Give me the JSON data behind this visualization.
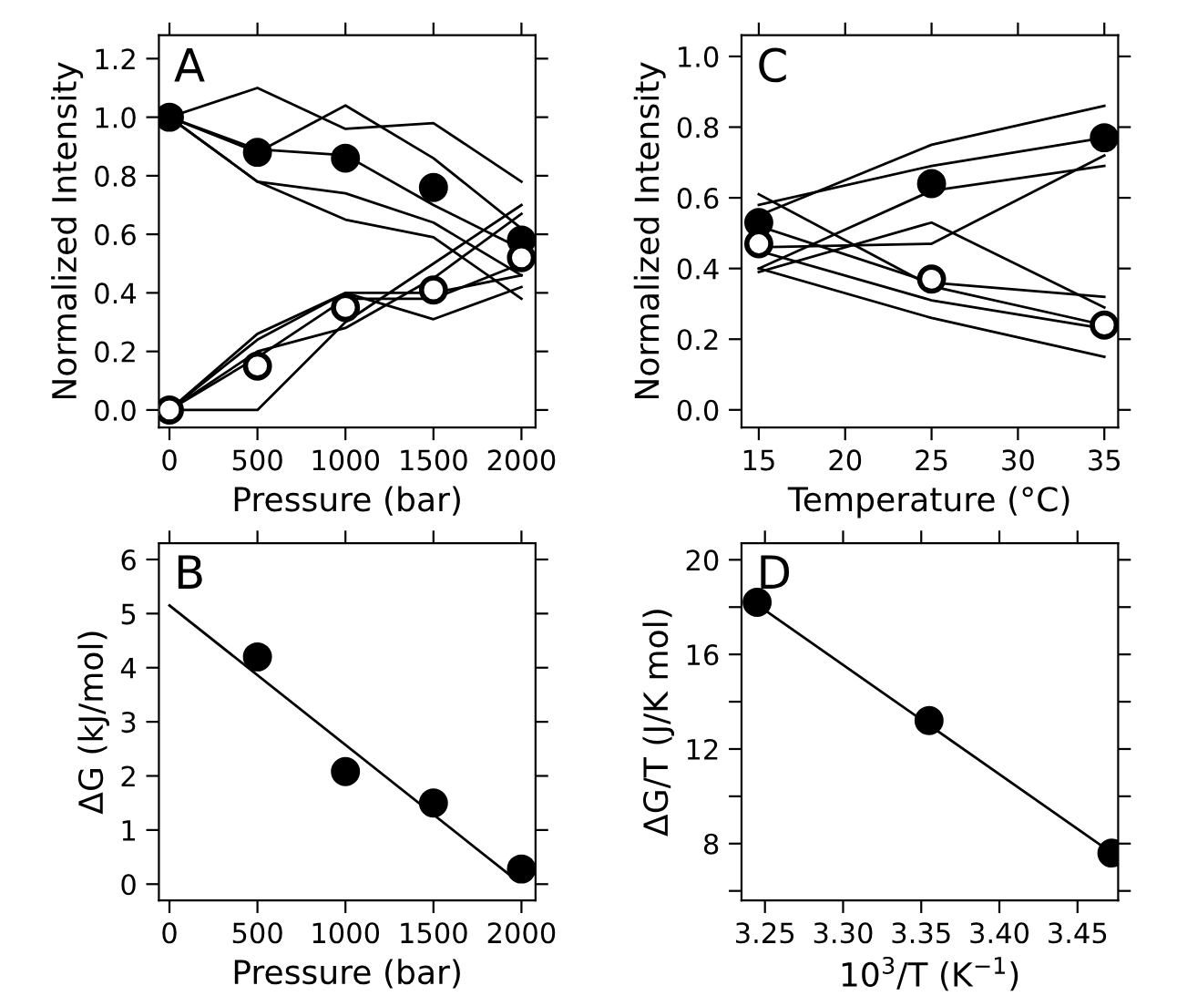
{
  "chart_data": [
    {
      "type": "line",
      "xlabel": "Pressure (bar)",
      "ylabel": "Normalized Intensity",
      "annotations": [
        "A"
      ],
      "x": [
        0,
        500,
        1000,
        1500,
        2000
      ],
      "xlim": [
        -60,
        2080
      ],
      "ylim": [
        -0.06,
        1.28
      ],
      "xticks": [
        0,
        500,
        1000,
        1500,
        2000
      ],
      "yticks": [
        {
          "value": 0,
          "label": "0.0"
        },
        0.2,
        0.4,
        0.6,
        0.8,
        {
          "value": 1,
          "label": "1.0"
        },
        1.2
      ],
      "grid": false,
      "legend": false,
      "line_style": "solid",
      "series": [
        {
          "color": "#000000",
          "marker": "none",
          "values": [
            1.0,
            1.1,
            0.96,
            0.98,
            0.78
          ]
        },
        {
          "color": "#000000",
          "marker": "none",
          "values": [
            1.0,
            0.88,
            1.04,
            0.86,
            0.62
          ]
        },
        {
          "color": "#000000",
          "marker": "none",
          "values": [
            1.0,
            0.78,
            0.74,
            0.64,
            0.46
          ]
        },
        {
          "color": "#000000",
          "marker": "none",
          "values": [
            1.0,
            0.78,
            0.65,
            0.59,
            0.38
          ]
        },
        {
          "color": "#000000",
          "marker": "none",
          "values": [
            1.0,
            0.89,
            0.87,
            0.7,
            0.55
          ]
        },
        {
          "color": "#000000",
          "marker": "none",
          "values": [
            0,
            0,
            0.3,
            0.5,
            0.7
          ]
        },
        {
          "color": "#000000",
          "marker": "none",
          "values": [
            0,
            0.26,
            0.4,
            0.31,
            0.42
          ]
        },
        {
          "color": "#000000",
          "marker": "none",
          "values": [
            0,
            0.24,
            0.4,
            0.4,
            0.46
          ]
        },
        {
          "color": "#000000",
          "marker": "none",
          "values": [
            0,
            0.2,
            0.28,
            0.45,
            0.67
          ]
        },
        {
          "color": "#000000",
          "marker": "none",
          "values": [
            0,
            0.18,
            0.38,
            0.38,
            0.5
          ]
        },
        {
          "type": "scatter",
          "color": "#000000",
          "marker": "circle",
          "values": [
            1.0,
            0.88,
            0.86,
            0.76,
            0.58
          ]
        },
        {
          "type": "scatter",
          "color": "#ffffff",
          "marker": "circle",
          "values": [
            0,
            0.15,
            0.35,
            0.41,
            0.52
          ]
        }
      ]
    },
    {
      "type": "line",
      "xlabel": "Temperature (°C)",
      "ylabel": "Normalized Intensity",
      "annotations": [
        "C"
      ],
      "x": [
        15,
        25,
        35
      ],
      "xlim": [
        14,
        35.8
      ],
      "ylim": [
        -0.05,
        1.06
      ],
      "xticks": [
        15,
        20,
        25,
        30,
        35
      ],
      "yticks": [
        {
          "value": 0,
          "label": "0.0"
        },
        0.2,
        0.4,
        0.6,
        0.8,
        {
          "value": 1,
          "label": "1.0"
        }
      ],
      "grid": false,
      "legend": false,
      "line_style": "solid",
      "series": [
        {
          "color": "#000000",
          "marker": "none",
          "values": [
            0.55,
            0.75,
            0.86
          ]
        },
        {
          "color": "#000000",
          "marker": "none",
          "values": [
            0.58,
            0.69,
            0.77
          ]
        },
        {
          "color": "#000000",
          "marker": "none",
          "values": [
            0.4,
            0.62,
            0.69
          ]
        },
        {
          "color": "#000000",
          "marker": "none",
          "values": [
            0.39,
            0.53,
            0.29
          ]
        },
        {
          "color": "#000000",
          "marker": "none",
          "values": [
            0.46,
            0.47,
            0.72
          ]
        },
        {
          "color": "#000000",
          "marker": "none",
          "values": [
            0.61,
            0.35,
            0.24
          ]
        },
        {
          "color": "#000000",
          "marker": "none",
          "values": [
            0.45,
            0.31,
            0.23
          ]
        },
        {
          "color": "#000000",
          "marker": "none",
          "values": [
            0.4,
            0.26,
            0.15
          ]
        },
        {
          "color": "#000000",
          "marker": "none",
          "values": [
            0.52,
            0.36,
            0.32
          ]
        },
        {
          "type": "scatter",
          "color": "#000000",
          "marker": "circle",
          "values": [
            0.53,
            0.64,
            0.77
          ]
        },
        {
          "type": "scatter",
          "color": "#ffffff",
          "marker": "circle",
          "values": [
            0.47,
            0.37,
            0.24
          ]
        }
      ]
    },
    {
      "type": "scatter",
      "xlabel": "Pressure (bar)",
      "ylabel": "ΔG (kJ/mol)",
      "annotations": [
        "B"
      ],
      "xlim": [
        -60,
        2080
      ],
      "ylim": [
        -0.3,
        6.3
      ],
      "xticks": [
        0,
        500,
        1000,
        1500,
        2000
      ],
      "yticks": [
        0,
        1,
        2,
        3,
        4,
        5,
        6
      ],
      "grid": false,
      "legend": false,
      "line_style": "solid",
      "series": [
        {
          "color": "#000000",
          "marker": "circle",
          "x": [
            500,
            1000,
            1500,
            2000
          ],
          "values": [
            4.2,
            2.08,
            1.5,
            0.28
          ]
        },
        {
          "type": "line",
          "color": "#000000",
          "marker": "none",
          "x": [
            0,
            1960
          ],
          "values": [
            5.15,
            0.1
          ]
        }
      ]
    },
    {
      "type": "scatter",
      "xlabel": "10$^{3}$/T (K$^{−1}$)",
      "ylabel": "ΔG/T (J/K mol)",
      "annotations": [
        "D"
      ],
      "xlim": [
        3.235,
        3.476
      ],
      "ylim": [
        5.6,
        20.7
      ],
      "xticks": [
        3.25,
        {
          "value": 3.3,
          "label": "3.30"
        },
        3.35,
        {
          "value": 3.4,
          "label": "3.40"
        },
        3.45
      ],
      "yticks": [
        {
          "value": 6,
          "label": null
        },
        8,
        {
          "value": 10,
          "label": null
        },
        12,
        {
          "value": 14,
          "label": null
        },
        16,
        {
          "value": 18,
          "label": null
        },
        20
      ],
      "grid": false,
      "legend": false,
      "line_style": "solid",
      "series": [
        {
          "color": "#000000",
          "marker": "circle",
          "x": [
            3.245,
            3.355,
            3.472
          ],
          "values": [
            18.2,
            13.2,
            7.6
          ]
        },
        {
          "type": "line",
          "color": "#000000",
          "marker": "none",
          "x": [
            3.245,
            3.472
          ],
          "values": [
            18.1,
            7.6
          ]
        }
      ]
    }
  ]
}
